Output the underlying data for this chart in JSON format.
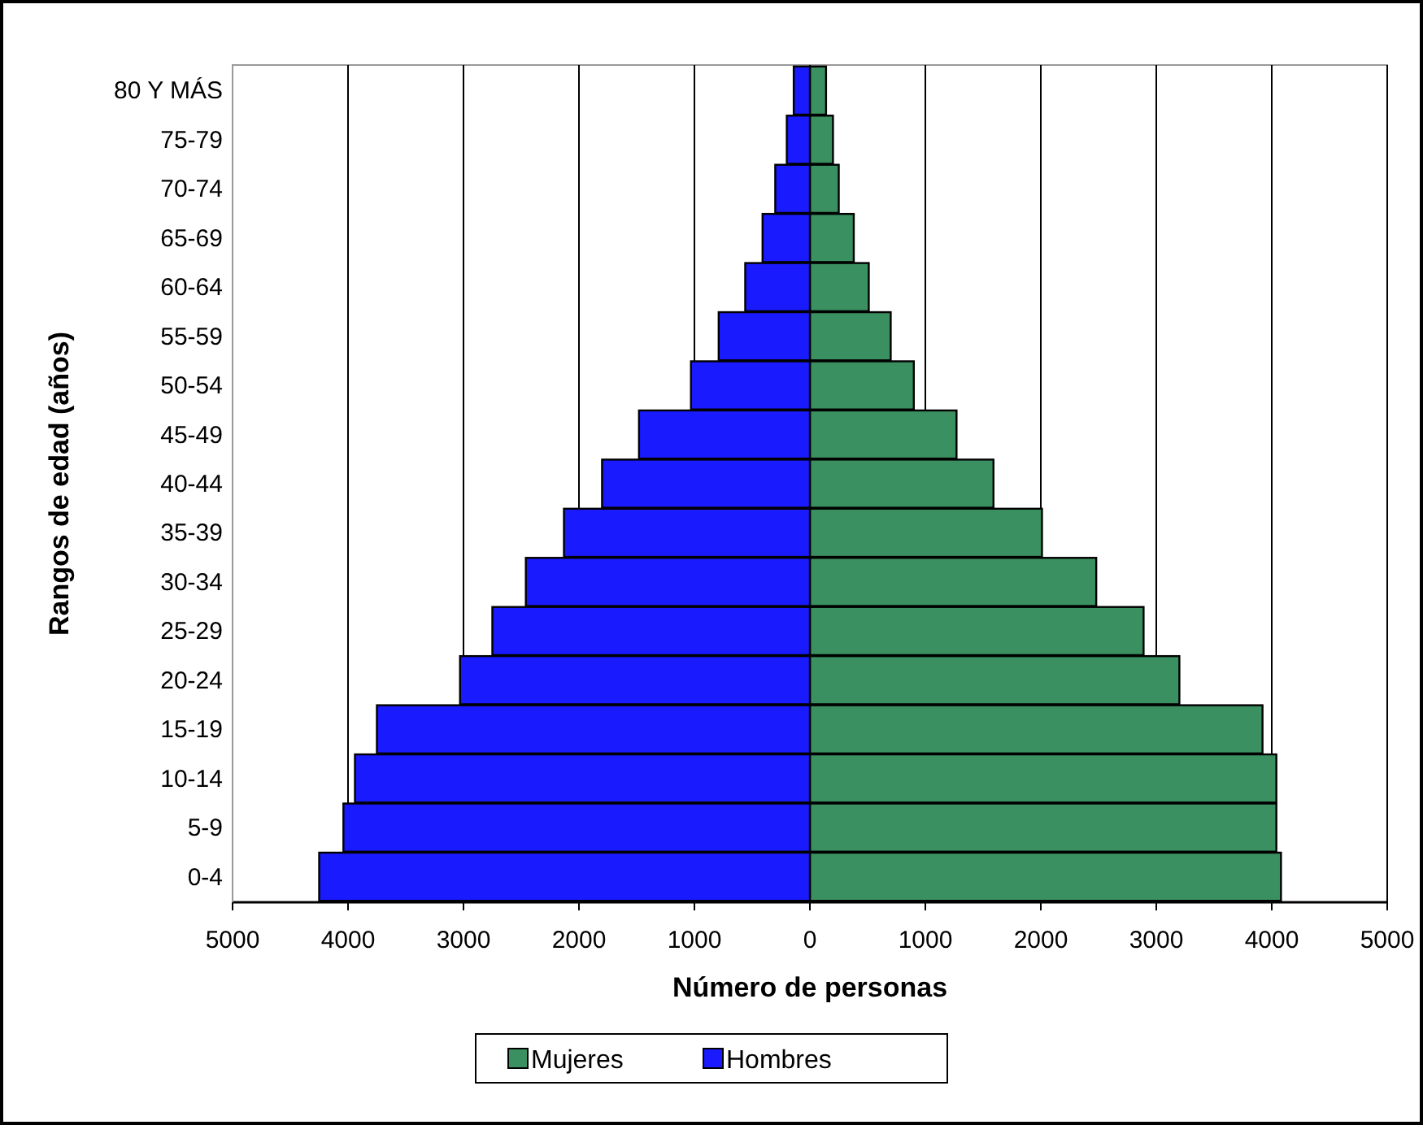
{
  "chart_data": {
    "type": "bar",
    "orientation": "horizontal",
    "xlabel": "Número de personas",
    "ylabel": "Rangos de edad (años)",
    "categories": [
      "80 Y MÁS",
      "75-79",
      "70-74",
      "65-69",
      "60-64",
      "55-59",
      "50-54",
      "45-49",
      "40-44",
      "35-39",
      "30-34",
      "25-29",
      "20-24",
      "15-19",
      "10-14",
      "5-9",
      "0-4"
    ],
    "series": [
      {
        "name": "Mujeres",
        "color": "#3a9060",
        "values": [
          140,
          200,
          250,
          380,
          510,
          700,
          900,
          1270,
          1590,
          2010,
          2480,
          2890,
          3200,
          3920,
          4040,
          4040,
          4080
        ]
      },
      {
        "name": "Hombres",
        "color": "#1a1aff",
        "values": [
          -140,
          -200,
          -300,
          -410,
          -560,
          -790,
          -1030,
          -1480,
          -1800,
          -2130,
          -2460,
          -2750,
          -3030,
          -3750,
          -3940,
          -4040,
          -4250
        ]
      }
    ],
    "xlim": [
      -5000,
      5000
    ],
    "xticks": [
      {
        "value": -5000,
        "label": "5000"
      },
      {
        "value": -4000,
        "label": "4000"
      },
      {
        "value": -3000,
        "label": "3000"
      },
      {
        "value": -2000,
        "label": "2000"
      },
      {
        "value": -1000,
        "label": "1000"
      },
      0,
      1000,
      2000,
      3000,
      4000,
      5000
    ],
    "grid": "x",
    "legend": "bottom",
    "stacked": true
  }
}
